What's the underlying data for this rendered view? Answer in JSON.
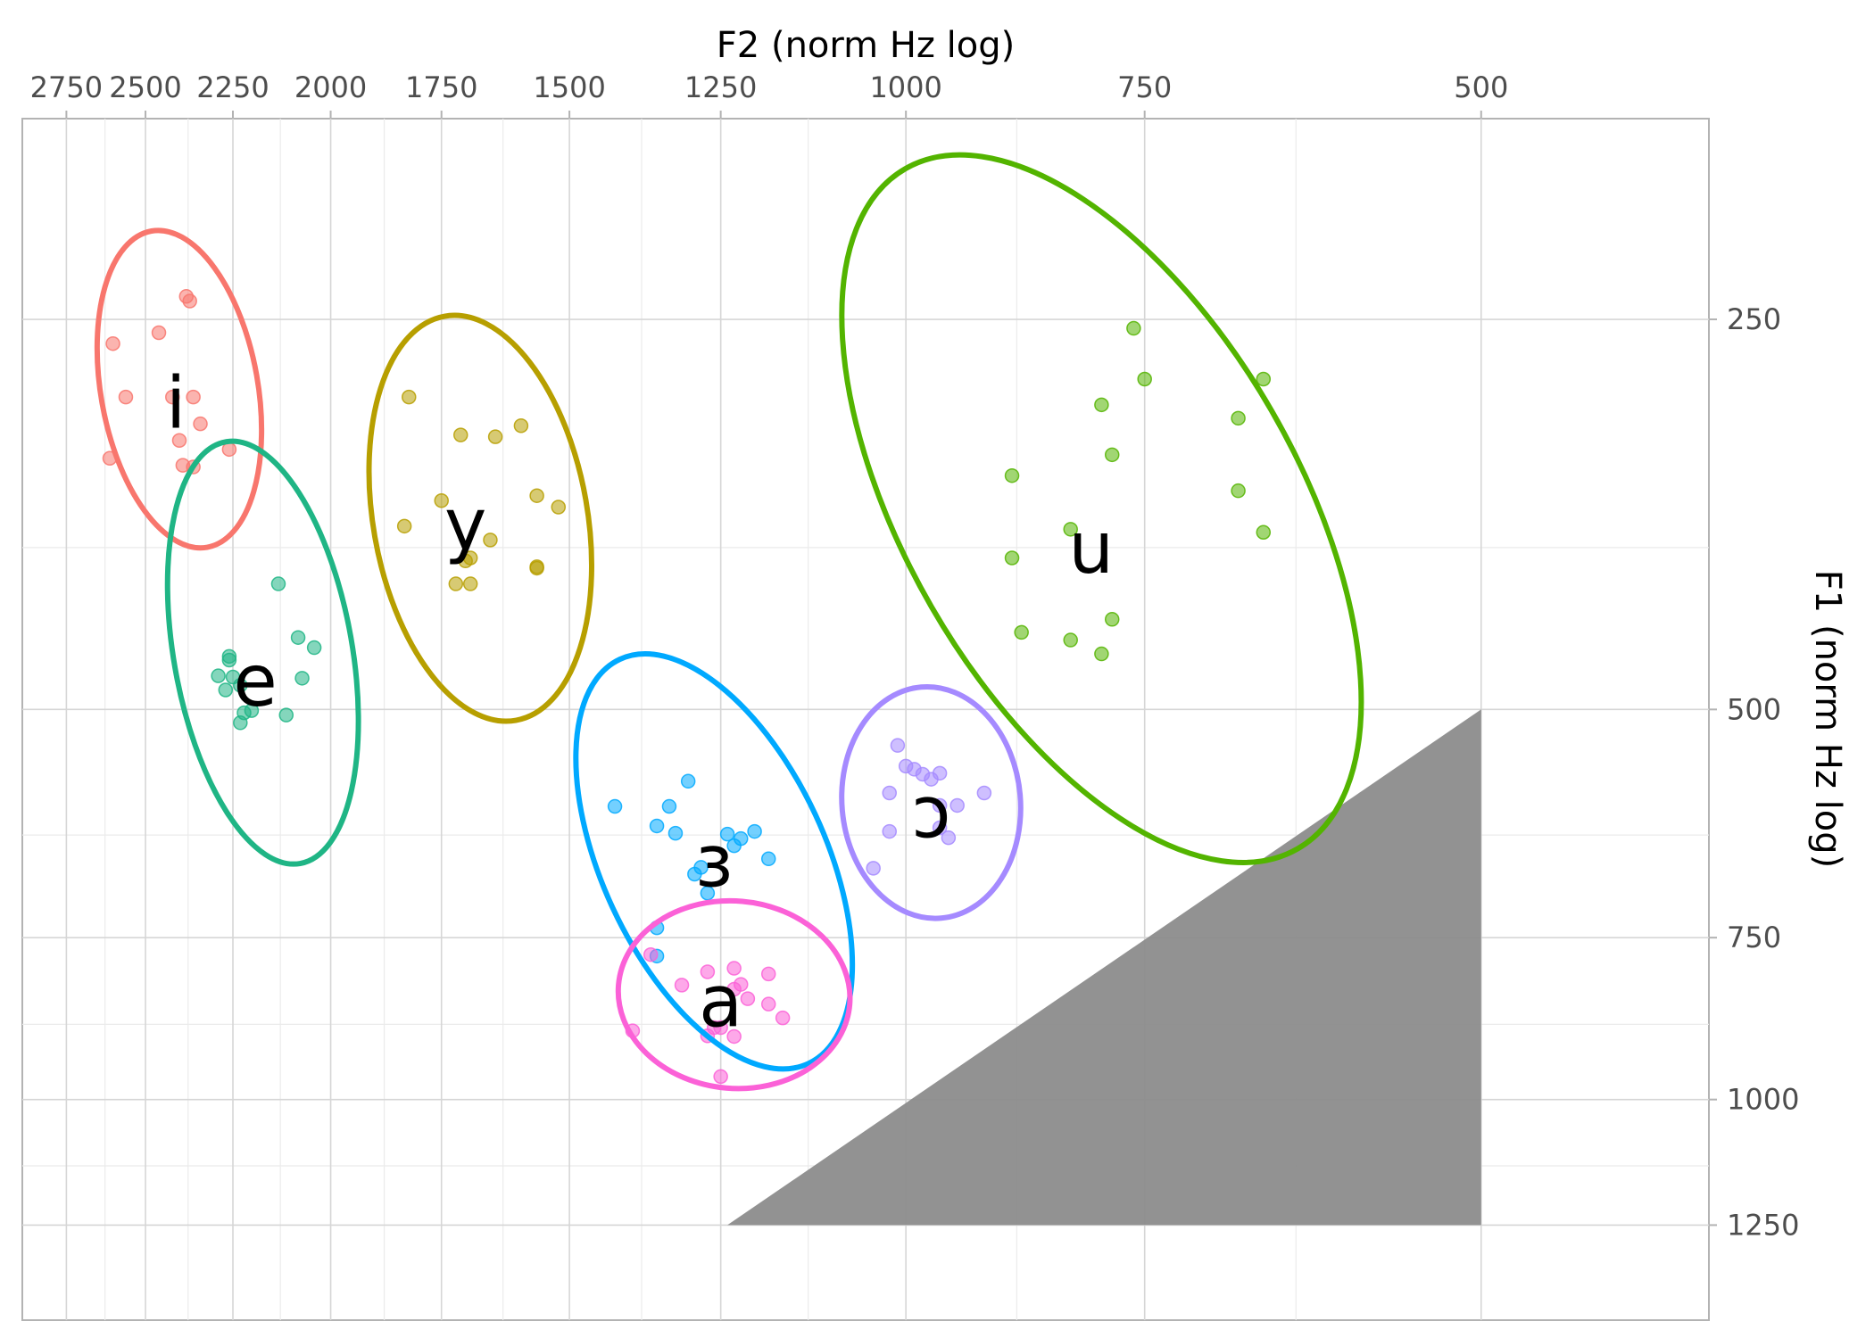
{
  "chart_data": {
    "type": "scatter",
    "title": "",
    "xlabel": "F2 (norm Hz log)",
    "ylabel": "F1 (norm Hz log)",
    "x_axis": {
      "position": "top",
      "scale": "log",
      "reversed": true,
      "range": [
        2900,
        380
      ],
      "major_ticks": [
        2750,
        2500,
        2250,
        2000,
        1750,
        1500,
        1250,
        1000,
        750,
        500
      ],
      "minor_ticks": [
        2625,
        2375,
        2125,
        1875,
        1625,
        1375,
        1125,
        875,
        625
      ]
    },
    "y_axis": {
      "position": "right",
      "scale": "log",
      "reversed": true,
      "range": [
        175,
        1480
      ],
      "major_ticks": [
        250,
        500,
        750,
        1000,
        1250
      ],
      "minor_ticks": [
        375,
        625,
        875,
        1125
      ]
    },
    "grid": true,
    "legend": "none",
    "series": [
      {
        "name": "i",
        "color": "#F8766D",
        "label_pos": [
          2410,
          290
        ],
        "ellipse": {
          "cx": 2400,
          "cy": 283,
          "sx": 180,
          "sy": 88,
          "tilt": 80
        },
        "points": [
          [
            2600,
            261
          ],
          [
            2560,
            287
          ],
          [
            2460,
            256
          ],
          [
            2420,
            287
          ],
          [
            2390,
            324
          ],
          [
            2400,
            310
          ],
          [
            2360,
            287
          ],
          [
            2360,
            325
          ],
          [
            2340,
            301
          ],
          [
            2380,
            240
          ],
          [
            2370,
            242
          ],
          [
            2260,
            315
          ],
          [
            2610,
            320
          ]
        ]
      },
      {
        "name": "e",
        "color": "#1FB585",
        "label_pos": [
          2190,
          475
        ],
        "ellipse": {
          "cx": 2170,
          "cy": 452,
          "sx": 240,
          "sy": 100,
          "tilt": 80
        },
        "points": [
          [
            2130,
            400
          ],
          [
            2080,
            440
          ],
          [
            2040,
            448
          ],
          [
            2260,
            458
          ],
          [
            2260,
            455
          ],
          [
            2290,
            471
          ],
          [
            2250,
            472
          ],
          [
            2230,
            479
          ],
          [
            2270,
            483
          ],
          [
            2200,
            501
          ],
          [
            2220,
            503
          ],
          [
            2110,
            505
          ],
          [
            2070,
            473
          ],
          [
            2230,
            512
          ]
        ]
      },
      {
        "name": "y",
        "color": "#B79F00",
        "label_pos": [
          1700,
          360
        ],
        "ellipse": {
          "cx": 1670,
          "cy": 356,
          "sx": 230,
          "sy": 120,
          "tilt": 80
        },
        "points": [
          [
            1820,
            287
          ],
          [
            1710,
            307
          ],
          [
            1640,
            308
          ],
          [
            1590,
            302
          ],
          [
            1750,
            345
          ],
          [
            1560,
            342
          ],
          [
            1520,
            349
          ],
          [
            1830,
            361
          ],
          [
            1650,
            370
          ],
          [
            1700,
            384
          ],
          [
            1690,
            382
          ],
          [
            1560,
            389
          ],
          [
            1560,
            388
          ],
          [
            1720,
            400
          ],
          [
            1690,
            400
          ]
        ]
      },
      {
        "name": "u",
        "color": "#53B400",
        "label_pos": [
          800,
          375
        ],
        "ellipse": {
          "cx": 790,
          "cy": 350,
          "sx": 440,
          "sy": 220,
          "tilt": 60
        },
        "points": [
          [
            760,
            254
          ],
          [
            750,
            278
          ],
          [
            650,
            278
          ],
          [
            790,
            291
          ],
          [
            670,
            298
          ],
          [
            780,
            318
          ],
          [
            880,
            330
          ],
          [
            670,
            339
          ],
          [
            820,
            363
          ],
          [
            650,
            365
          ],
          [
            880,
            382
          ],
          [
            780,
            426
          ],
          [
            870,
            436
          ],
          [
            820,
            442
          ],
          [
            790,
            453
          ]
        ]
      },
      {
        "name": "ɔ",
        "color": "#A58AFF",
        "label_pos": [
          970,
          600
        ],
        "ellipse": {
          "cx": 970,
          "cy": 590,
          "sx": 130,
          "sy": 100,
          "tilt": 85
        },
        "points": [
          [
            1010,
            533
          ],
          [
            1000,
            553
          ],
          [
            990,
            556
          ],
          [
            980,
            561
          ],
          [
            960,
            560
          ],
          [
            970,
            566
          ],
          [
            1020,
            580
          ],
          [
            960,
            593
          ],
          [
            940,
            593
          ],
          [
            910,
            580
          ],
          [
            1020,
            621
          ],
          [
            960,
            617
          ],
          [
            950,
            628
          ],
          [
            1040,
            663
          ]
        ]
      },
      {
        "name": "ɜ",
        "color": "#00A9FF",
        "label_pos": [
          1260,
          655
        ],
        "ellipse": {
          "cx": 1260,
          "cy": 655,
          "sx": 250,
          "sy": 125,
          "tilt": 65
        },
        "points": [
          [
            1300,
            568
          ],
          [
            1420,
            594
          ],
          [
            1330,
            594
          ],
          [
            1350,
            615
          ],
          [
            1320,
            623
          ],
          [
            1240,
            624
          ],
          [
            1200,
            621
          ],
          [
            1220,
            629
          ],
          [
            1230,
            637
          ],
          [
            1180,
            652
          ],
          [
            1280,
            662
          ],
          [
            1290,
            670
          ],
          [
            1270,
            693
          ],
          [
            1350,
            737
          ],
          [
            1350,
            775
          ]
        ]
      },
      {
        "name": "a",
        "color": "#FB61D7",
        "label_pos": [
          1250,
          840
        ],
        "ellipse": {
          "cx": 1230,
          "cy": 830,
          "sx": 130,
          "sy": 105,
          "tilt": 5
        },
        "points": [
          [
            1360,
            773
          ],
          [
            1270,
            797
          ],
          [
            1180,
            800
          ],
          [
            1230,
            792
          ],
          [
            1310,
            816
          ],
          [
            1220,
            815
          ],
          [
            1230,
            822
          ],
          [
            1210,
            836
          ],
          [
            1180,
            844
          ],
          [
            1160,
            865
          ],
          [
            1250,
            880
          ],
          [
            1390,
            885
          ],
          [
            1230,
            894
          ],
          [
            1260,
            880
          ],
          [
            1270,
            893
          ],
          [
            1250,
            960
          ]
        ]
      }
    ],
    "shaded_region": {
      "color": "#8c8c8c",
      "vertices": [
        [
          500,
          500
        ],
        [
          500,
          1250
        ],
        [
          1240,
          1250
        ]
      ]
    }
  }
}
